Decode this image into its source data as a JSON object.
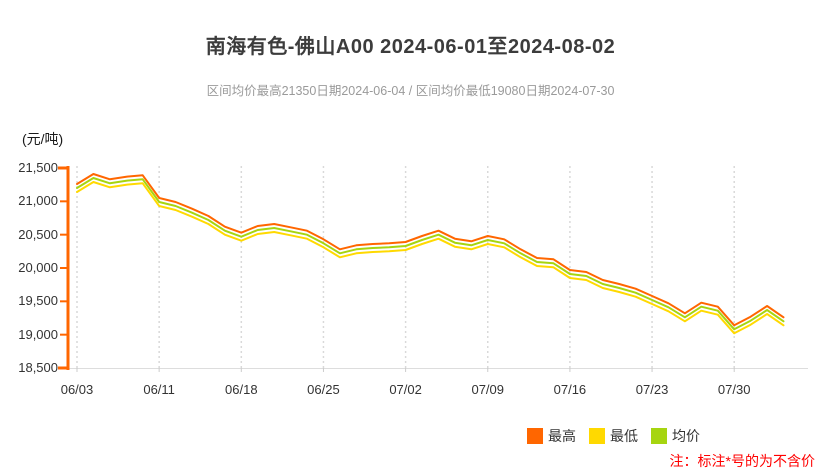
{
  "header": {
    "title": "南海有色-佛山A00 2024-06-01至2024-08-02",
    "subtitle": "区间均价最高21350日期2024-06-04 / 区间均价最低19080日期2024-07-30"
  },
  "y_axis": {
    "unit": "(元/吨)",
    "axis_color": "#ff6600",
    "ticks": [
      {
        "value": 21500,
        "label": "21,500"
      },
      {
        "value": 21000,
        "label": "21,000"
      },
      {
        "value": 20500,
        "label": "20,500"
      },
      {
        "value": 20000,
        "label": "20,000"
      },
      {
        "value": 19500,
        "label": "19,500"
      },
      {
        "value": 19000,
        "label": "19,000"
      },
      {
        "value": 18500,
        "label": "18,500"
      }
    ]
  },
  "chart_data": {
    "type": "line",
    "title": "南海有色-佛山A00 2024-06-01至2024-08-02",
    "ylabel": "(元/吨)",
    "ylim": [
      18500,
      21500
    ],
    "grid": "vertical dotted weekly gridlines, light gray baseline",
    "legend_position": "bottom-right",
    "x": [
      "06/03",
      "06/04",
      "06/05",
      "06/06",
      "06/07",
      "06/11",
      "06/12",
      "06/13",
      "06/14",
      "06/17",
      "06/18",
      "06/19",
      "06/20",
      "06/21",
      "06/24",
      "06/25",
      "06/26",
      "06/27",
      "06/28",
      "07/01",
      "07/02",
      "07/03",
      "07/04",
      "07/05",
      "07/08",
      "07/09",
      "07/10",
      "07/11",
      "07/12",
      "07/15",
      "07/16",
      "07/17",
      "07/18",
      "07/19",
      "07/22",
      "07/23",
      "07/24",
      "07/25",
      "07/26",
      "07/29",
      "07/30",
      "07/31",
      "08/01",
      "08/02"
    ],
    "x_tick_indices": [
      0,
      5,
      10,
      15,
      20,
      25,
      30,
      35,
      40
    ],
    "x_tick_labels": [
      "06/03",
      "06/11",
      "06/18",
      "06/25",
      "07/02",
      "07/09",
      "07/16",
      "07/23",
      "07/30"
    ],
    "series": [
      {
        "name": "最高",
        "color": "#ff6600",
        "values": [
          21260,
          21410,
          21330,
          21370,
          21390,
          21050,
          20990,
          20890,
          20780,
          20620,
          20530,
          20630,
          20660,
          20610,
          20560,
          20430,
          20280,
          20340,
          20360,
          20370,
          20390,
          20480,
          20560,
          20440,
          20400,
          20480,
          20430,
          20280,
          20150,
          20130,
          19970,
          19940,
          19820,
          19760,
          19690,
          19580,
          19470,
          19320,
          19480,
          19420,
          19140,
          19270,
          19430,
          19260
        ]
      },
      {
        "name": "最低",
        "color": "#ffd900",
        "values": [
          21140,
          21290,
          21210,
          21250,
          21270,
          20930,
          20870,
          20770,
          20660,
          20500,
          20410,
          20510,
          20540,
          20490,
          20440,
          20310,
          20160,
          20220,
          20240,
          20250,
          20270,
          20360,
          20440,
          20320,
          20280,
          20360,
          20310,
          20160,
          20030,
          20010,
          19850,
          19820,
          19700,
          19640,
          19570,
          19460,
          19350,
          19200,
          19360,
          19300,
          19020,
          19150,
          19310,
          19140
        ]
      },
      {
        "name": "均价",
        "color": "#a6d510",
        "values": [
          21200,
          21350,
          21270,
          21310,
          21330,
          20990,
          20930,
          20830,
          20720,
          20560,
          20470,
          20570,
          20600,
          20550,
          20500,
          20370,
          20220,
          20280,
          20300,
          20310,
          20330,
          20420,
          20500,
          20380,
          20340,
          20420,
          20370,
          20220,
          20090,
          20070,
          19910,
          19880,
          19760,
          19700,
          19630,
          19520,
          19410,
          19260,
          19420,
          19360,
          19080,
          19210,
          19370,
          19200
        ]
      }
    ],
    "annotations": {
      "avg_max": {
        "value": 21350,
        "date": "2024-06-04"
      },
      "avg_min": {
        "value": 19080,
        "date": "2024-07-30"
      }
    }
  },
  "legend": {
    "items": [
      {
        "label": "最高",
        "color": "#ff6600"
      },
      {
        "label": "最低",
        "color": "#ffd900"
      },
      {
        "label": "均价",
        "color": "#a6d510"
      }
    ]
  },
  "footer": {
    "note": "注：标注*号的为不含价",
    "note_color": "#ff0000"
  }
}
